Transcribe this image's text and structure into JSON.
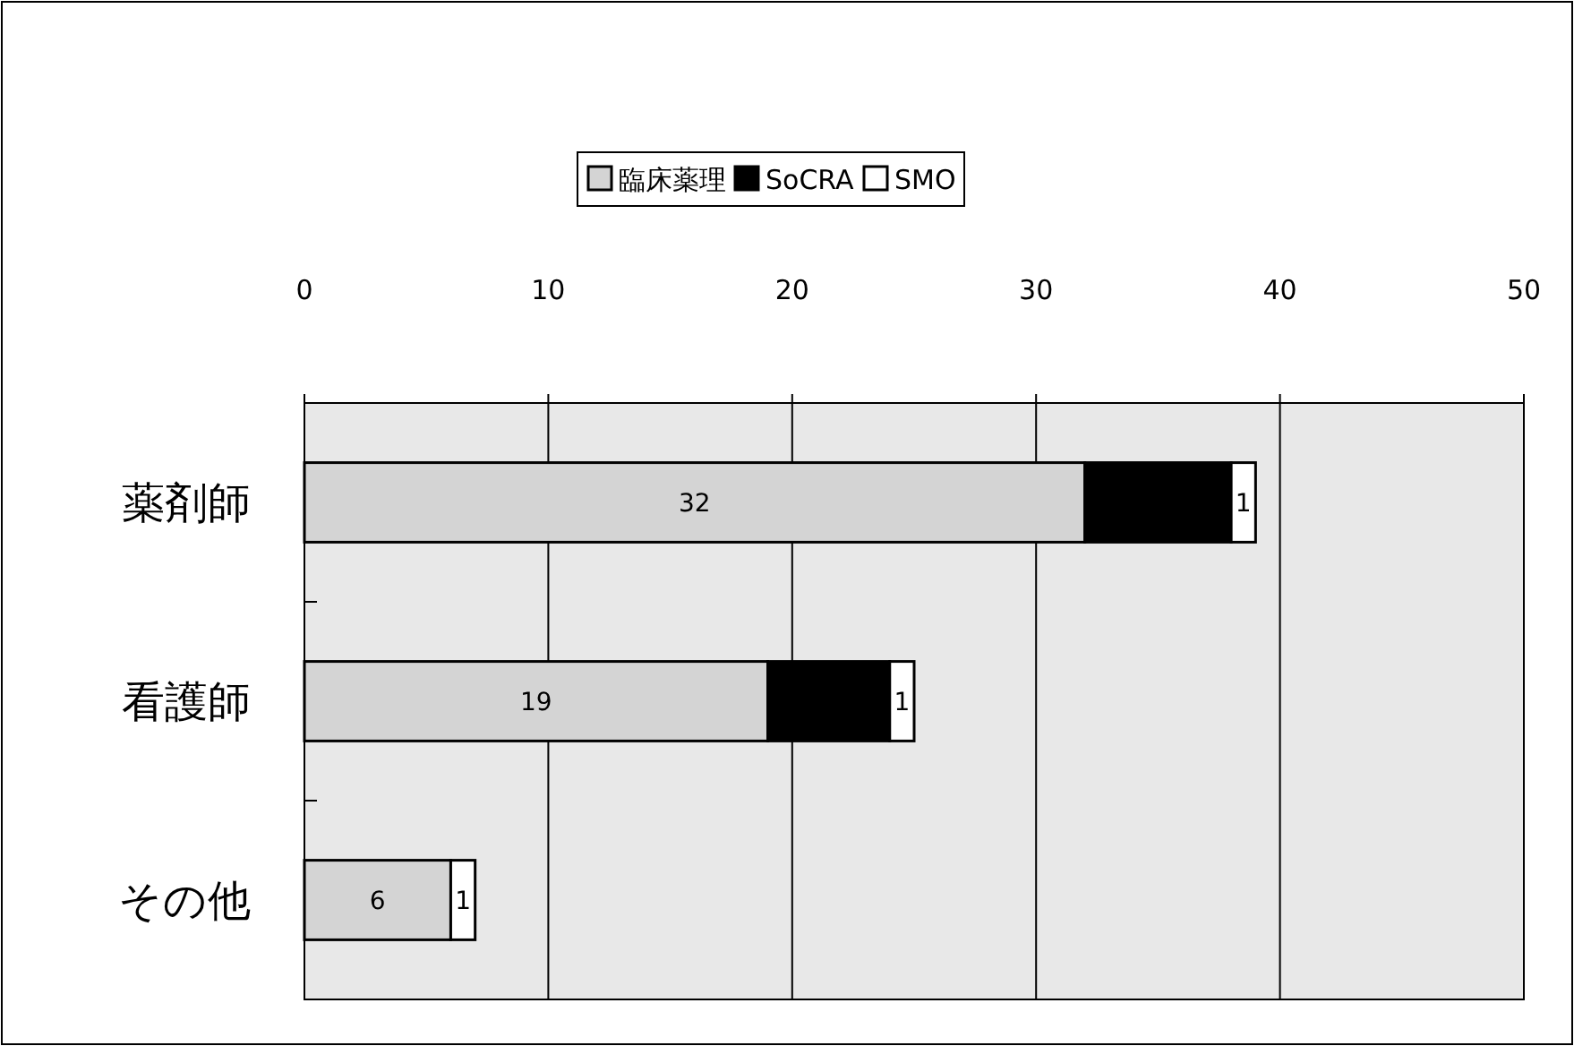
{
  "chart_data": {
    "type": "bar",
    "orientation": "horizontal",
    "stacked": true,
    "categories": [
      "薬剤師",
      "看護師",
      "その他"
    ],
    "series": [
      {
        "name": "臨床薬理",
        "color": "#d4d4d4",
        "values": [
          32,
          19,
          6
        ],
        "value_labels": [
          "32",
          "19",
          "6"
        ]
      },
      {
        "name": "SoCRA",
        "color": "#000000",
        "values": [
          6,
          5,
          0
        ],
        "value_labels": [
          null,
          null,
          null
        ]
      },
      {
        "name": "SMO",
        "color": "#ffffff",
        "values": [
          1,
          1,
          1
        ],
        "value_labels": [
          "1",
          "1",
          "1"
        ]
      }
    ],
    "xlim": [
      0,
      50
    ],
    "xticks": [
      0,
      10,
      20,
      30,
      40,
      50
    ],
    "grid": "x",
    "legend": "top"
  }
}
